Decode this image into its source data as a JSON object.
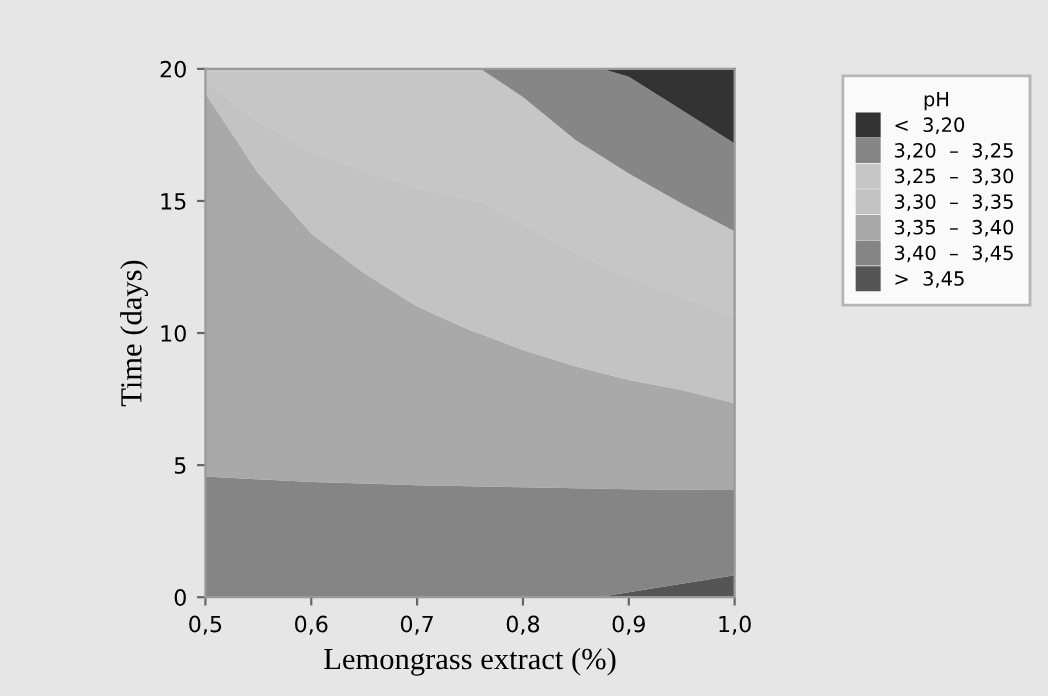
{
  "chart_data": {
    "type": "area",
    "stacked": true,
    "xlabel": "Lemongrass extract (%)",
    "ylabel": "Time (days)",
    "legend_title": "pH",
    "legend": "right",
    "grid": false,
    "x": [
      0.5,
      0.55,
      0.6,
      0.65,
      0.7,
      0.75,
      0.76,
      0.8,
      0.85,
      0.87,
      0.875,
      0.9,
      0.95,
      1.0
    ],
    "xlim": [
      0.5,
      1.0
    ],
    "xticks": [
      {
        "value": 0.5,
        "label": "0,5"
      },
      {
        "value": 0.6,
        "label": "0,6"
      },
      {
        "value": 0.7,
        "label": "0,7"
      },
      {
        "value": 0.8,
        "label": "0,8"
      },
      {
        "value": 0.9,
        "label": "0,9"
      },
      {
        "value": 1.0,
        "label": "1,0"
      }
    ],
    "ylim": [
      0,
      20
    ],
    "yticks": [
      0,
      5,
      10,
      15,
      20
    ],
    "series": [
      {
        "name": ">  3,45",
        "color": "#555555",
        "values": [
          0,
          0,
          0,
          0,
          0,
          0,
          0,
          0,
          0,
          0,
          0.03,
          0.19,
          0.51,
          0.83
        ]
      },
      {
        "name": "3,40  –  3,45",
        "color": "#858585",
        "values": [
          4.57,
          4.46,
          4.36,
          4.3,
          4.24,
          4.2,
          4.19,
          4.16,
          4.12,
          4.11,
          4.07,
          3.9,
          3.56,
          3.23
        ]
      },
      {
        "name": "3,35  –  3,40",
        "color": "#a9a9a9",
        "values": [
          14.5,
          11.58,
          9.41,
          7.96,
          6.76,
          5.91,
          5.77,
          5.2,
          4.61,
          4.42,
          4.38,
          4.13,
          3.77,
          3.28
        ]
      },
      {
        "name": "3,30  –  3,35",
        "color": "#c3c3c3",
        "values": [
          0.47,
          1.98,
          3.12,
          3.87,
          4.5,
          4.95,
          5.02,
          4.79,
          4.29,
          4.14,
          4.1,
          3.91,
          3.53,
          3.26
        ]
      },
      {
        "name": "3,25  –  3,30",
        "color": "#c6c6c6",
        "values": [
          0.46,
          1.98,
          3.11,
          3.87,
          4.5,
          4.94,
          5.02,
          4.79,
          4.28,
          4.13,
          4.09,
          3.91,
          3.53,
          3.25
        ]
      },
      {
        "name": "3,20  –  3,25",
        "color": "#868686",
        "values": [
          0,
          0,
          0,
          0,
          0,
          0,
          0,
          1.06,
          2.7,
          3.2,
          3.33,
          3.66,
          3.54,
          3.33
        ]
      },
      {
        "name": "<  3,20",
        "color": "#333333",
        "values": [
          0,
          0,
          0,
          0,
          0,
          0,
          0,
          0,
          0,
          0,
          0,
          0.3,
          1.56,
          2.82
        ]
      }
    ]
  }
}
